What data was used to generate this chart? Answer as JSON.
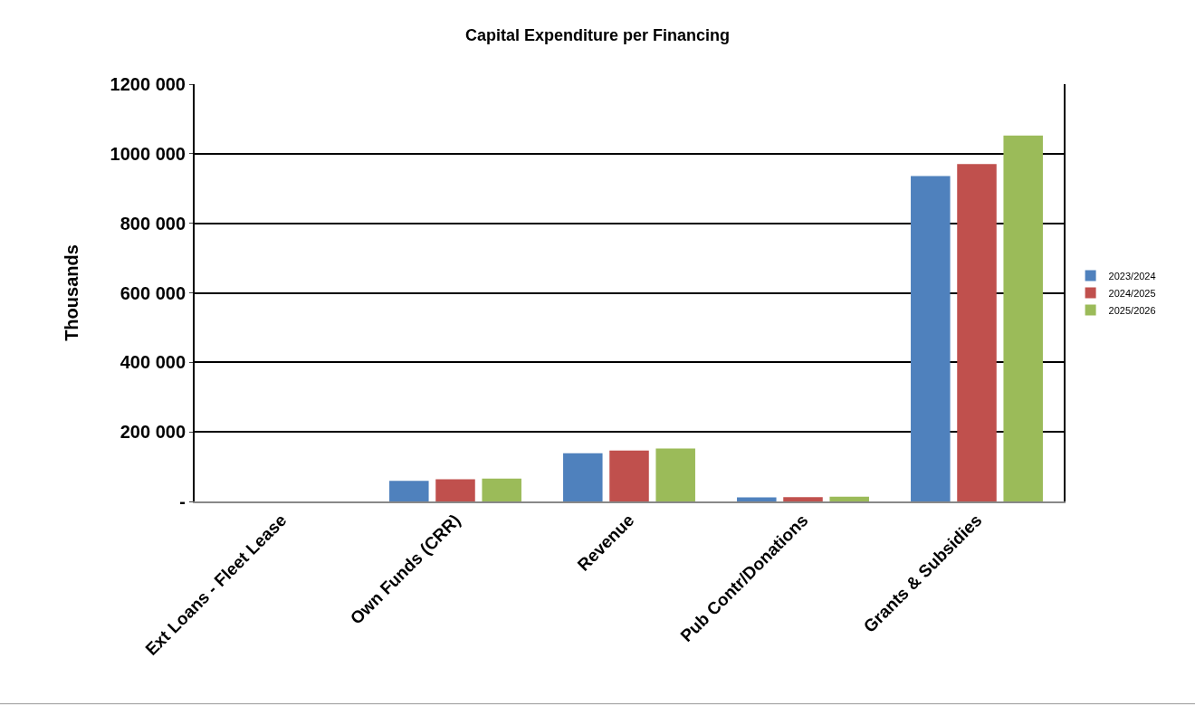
{
  "chart_data": {
    "type": "bar",
    "title": "Capital Expenditure per Financing",
    "ylabel": "Thousands",
    "categories": [
      "Ext Loans - Fleet Lease",
      "Own Funds (CRR)",
      "Revenue",
      "Pub Contr/Donations",
      "Grants & Subsidies"
    ],
    "series": [
      {
        "name": "2023/2024",
        "color": "#4f81bd",
        "values": [
          0,
          59000,
          138500,
          11500,
          936000
        ]
      },
      {
        "name": "2024/2025",
        "color": "#c0504d",
        "values": [
          0,
          63500,
          146500,
          12500,
          970000
        ]
      },
      {
        "name": "2025/2026",
        "color": "#9bbb59",
        "values": [
          0,
          66000,
          152500,
          13500,
          1052000
        ]
      }
    ],
    "ylim": [
      0,
      1200000
    ],
    "yticks": [
      {
        "value": 0,
        "label": "-"
      },
      {
        "value": 200000,
        "label": "200 000"
      },
      {
        "value": 400000,
        "label": "400 000"
      },
      {
        "value": 600000,
        "label": "600 000"
      },
      {
        "value": 800000,
        "label": "800 000"
      },
      {
        "value": 1000000,
        "label": "1000 000"
      },
      {
        "value": 1200000,
        "label": "1200 000"
      }
    ],
    "grid": "y",
    "legend": "right"
  }
}
